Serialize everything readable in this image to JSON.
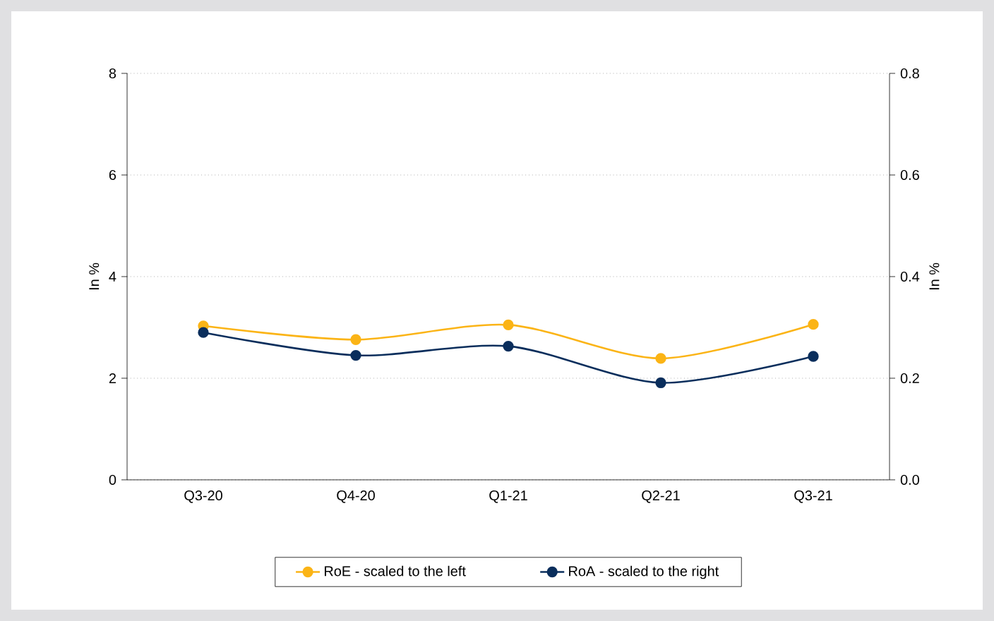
{
  "chart_data": {
    "type": "line",
    "categories": [
      "Q3-20",
      "Q4-20",
      "Q1-21",
      "Q2-21",
      "Q3-21"
    ],
    "ylabel": "In %",
    "y2label": "In %",
    "ylim": [
      0,
      8
    ],
    "yticks": [
      0,
      2,
      4,
      6,
      8
    ],
    "y2lim": [
      0,
      0.8
    ],
    "y2ticks": [
      {
        "value": 0,
        "label": "0.0"
      },
      0.2,
      0.4,
      0.6,
      0.8
    ],
    "grid": "y",
    "legend": "bottom",
    "marker": "circle",
    "line_style": "solid",
    "series": [
      {
        "name": "RoE - scaled to the left",
        "color": "#fbb416",
        "values": [
          3.03,
          2.76,
          3.05,
          2.39,
          3.06
        ]
      },
      {
        "name": "RoA - scaled to the right",
        "color": "#0a2e5c",
        "axis": "y2",
        "values": [
          0.29,
          0.245,
          0.263,
          0.191,
          0.243
        ]
      }
    ]
  }
}
